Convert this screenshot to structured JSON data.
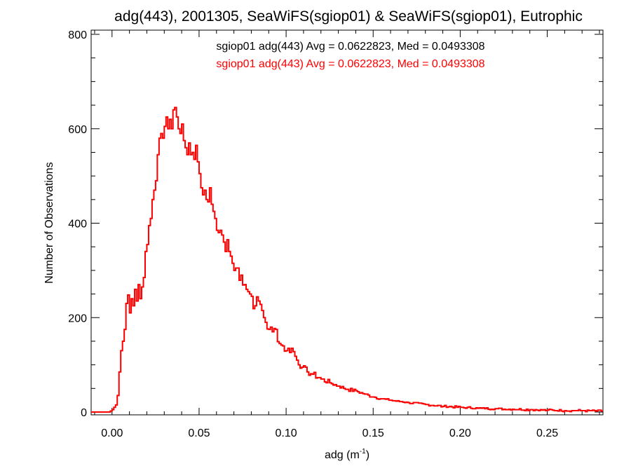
{
  "chart_data": {
    "type": "histogram",
    "title": "adg(443), 2001305, SeaWiFS(sgiop01) & SeaWiFS(sgiop01), Eutrophic",
    "xlabel": "adg (m",
    "xlabel_sup": "-1",
    "xlabel_suffix": ")",
    "ylabel": "Number of Observations",
    "xlim": [
      -0.012,
      0.282
    ],
    "ylim": [
      0,
      800
    ],
    "xticks": [
      0.0,
      0.05,
      0.1,
      0.15,
      0.2,
      0.25
    ],
    "xtick_labels": [
      "0.00",
      "0.05",
      "0.10",
      "0.15",
      "0.20",
      "0.25"
    ],
    "yticks": [
      0,
      200,
      400,
      600,
      800
    ],
    "ytick_labels": [
      "0",
      "200",
      "400",
      "600",
      "800"
    ],
    "grid": false,
    "bin_start": -0.012,
    "bin_width": 0.001,
    "annotations": [
      {
        "text": "sgiop01 adg(443) Avg = 0.0622823, Med = 0.0493308",
        "color": "#000000"
      },
      {
        "text": "sgiop01 adg(443) Avg = 0.0622823, Med = 0.0493308",
        "color": "#ff0000"
      }
    ],
    "series": [
      {
        "color": "#000000",
        "values": []
      },
      {
        "color": "#ff0000",
        "values": []
      }
    ],
    "key_points": [
      [
        -0.012,
        0
      ],
      [
        -0.002,
        0
      ],
      [
        0.0,
        5
      ],
      [
        0.002,
        15
      ],
      [
        0.003,
        35
      ],
      [
        0.004,
        85
      ],
      [
        0.005,
        130
      ],
      [
        0.006,
        150
      ],
      [
        0.007,
        175
      ],
      [
        0.008,
        230
      ],
      [
        0.009,
        248
      ],
      [
        0.01,
        210
      ],
      [
        0.011,
        240
      ],
      [
        0.012,
        225
      ],
      [
        0.013,
        260
      ],
      [
        0.014,
        235
      ],
      [
        0.015,
        270
      ],
      [
        0.016,
        240
      ],
      [
        0.017,
        265
      ],
      [
        0.018,
        285
      ],
      [
        0.019,
        340
      ],
      [
        0.02,
        355
      ],
      [
        0.021,
        395
      ],
      [
        0.022,
        410
      ],
      [
        0.023,
        450
      ],
      [
        0.024,
        470
      ],
      [
        0.025,
        490
      ],
      [
        0.026,
        545
      ],
      [
        0.027,
        580
      ],
      [
        0.028,
        590
      ],
      [
        0.029,
        580
      ],
      [
        0.03,
        605
      ],
      [
        0.031,
        625
      ],
      [
        0.032,
        600
      ],
      [
        0.033,
        620
      ],
      [
        0.034,
        600
      ],
      [
        0.035,
        640
      ],
      [
        0.036,
        645
      ],
      [
        0.037,
        625
      ],
      [
        0.038,
        600
      ],
      [
        0.039,
        590
      ],
      [
        0.04,
        610
      ],
      [
        0.041,
        575
      ],
      [
        0.042,
        560
      ],
      [
        0.043,
        545
      ],
      [
        0.044,
        570
      ],
      [
        0.045,
        545
      ],
      [
        0.046,
        550
      ],
      [
        0.047,
        535
      ],
      [
        0.048,
        565
      ],
      [
        0.049,
        530
      ],
      [
        0.05,
        505
      ],
      [
        0.051,
        475
      ],
      [
        0.052,
        460
      ],
      [
        0.053,
        470
      ],
      [
        0.054,
        450
      ],
      [
        0.055,
        445
      ],
      [
        0.056,
        475
      ],
      [
        0.057,
        440
      ],
      [
        0.058,
        425
      ],
      [
        0.059,
        410
      ],
      [
        0.06,
        385
      ],
      [
        0.061,
        380
      ],
      [
        0.062,
        385
      ],
      [
        0.063,
        375
      ],
      [
        0.064,
        360
      ],
      [
        0.065,
        340
      ],
      [
        0.066,
        365
      ],
      [
        0.067,
        340
      ],
      [
        0.068,
        330
      ],
      [
        0.07,
        300
      ],
      [
        0.072,
        305
      ],
      [
        0.074,
        290
      ],
      [
        0.076,
        270
      ],
      [
        0.078,
        255
      ],
      [
        0.08,
        245
      ],
      [
        0.082,
        225
      ],
      [
        0.084,
        235
      ],
      [
        0.086,
        215
      ],
      [
        0.088,
        190
      ],
      [
        0.09,
        175
      ],
      [
        0.092,
        170
      ],
      [
        0.094,
        175
      ],
      [
        0.096,
        145
      ],
      [
        0.098,
        140
      ],
      [
        0.1,
        130
      ],
      [
        0.103,
        135
      ],
      [
        0.106,
        110
      ],
      [
        0.109,
        95
      ],
      [
        0.112,
        85
      ],
      [
        0.115,
        80
      ],
      [
        0.12,
        70
      ],
      [
        0.125,
        62
      ],
      [
        0.13,
        55
      ],
      [
        0.135,
        48
      ],
      [
        0.14,
        45
      ],
      [
        0.145,
        38
      ],
      [
        0.15,
        32
      ],
      [
        0.155,
        28
      ],
      [
        0.16,
        25
      ],
      [
        0.17,
        20
      ],
      [
        0.18,
        16
      ],
      [
        0.19,
        12
      ],
      [
        0.2,
        10
      ],
      [
        0.21,
        8
      ],
      [
        0.22,
        7
      ],
      [
        0.23,
        6
      ],
      [
        0.24,
        5
      ],
      [
        0.25,
        4
      ],
      [
        0.26,
        3
      ],
      [
        0.27,
        3
      ],
      [
        0.282,
        2
      ]
    ]
  }
}
